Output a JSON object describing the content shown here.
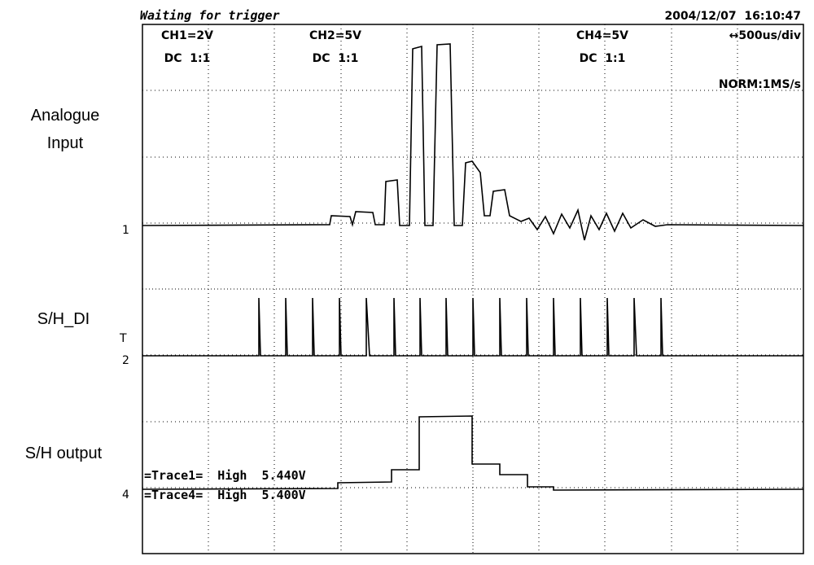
{
  "header": {
    "status": "Waiting for trigger",
    "timestamp": "2004/12/07  16:10:47"
  },
  "channels": [
    {
      "scale": "CH1=2V",
      "coupling": "DC  1:1"
    },
    {
      "scale": "CH2=5V",
      "coupling": "DC  1:1"
    },
    {
      "scale": "CH4=5V",
      "coupling": "DC  1:1"
    }
  ],
  "timebase": "↔500us/div",
  "sampling": "NORM:1MS/s",
  "labels": {
    "analogue": [
      "Analogue",
      "Input"
    ],
    "sh_di": "S/H_DI",
    "sh_out": "S/H output"
  },
  "markers": {
    "ch1": "1",
    "trigger": "T",
    "ch2": "2",
    "ch4": "4"
  },
  "measurements": [
    "=Trace1=  High  5.440V",
    "=Trace4=  High  5.400V"
  ]
}
